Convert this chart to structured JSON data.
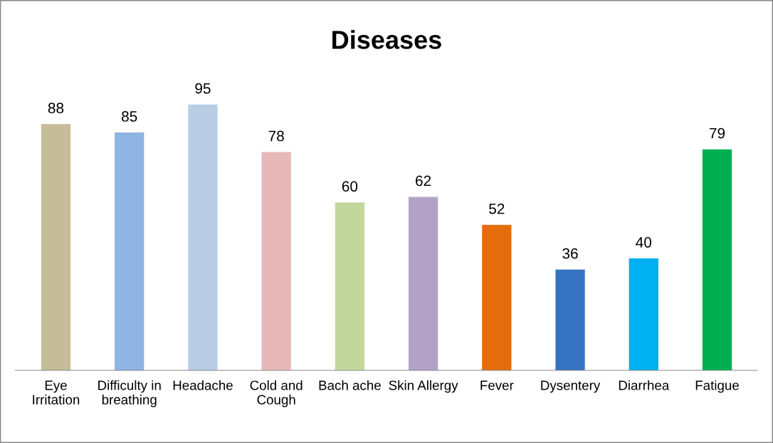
{
  "chart_data": {
    "type": "bar",
    "title": "Diseases",
    "categories": [
      "Eye\nIrritation",
      "Difficulty in\nbreathing",
      "Headache",
      "Cold and\nCough",
      "Bach ache",
      "Skin Allergy",
      "Fever",
      "Dysentery",
      "Diarrhea",
      "Fatigue"
    ],
    "values": [
      88,
      85,
      95,
      78,
      60,
      62,
      52,
      36,
      40,
      79
    ],
    "colors": [
      "#c4bd97",
      "#8eb4e3",
      "#b9cde5",
      "#e6b9b8",
      "#c3d69b",
      "#b3a2c7",
      "#e46c0a",
      "#3572c0",
      "#00b0f0",
      "#00b050"
    ],
    "data_labels": true,
    "grid": false,
    "legend": false
  }
}
